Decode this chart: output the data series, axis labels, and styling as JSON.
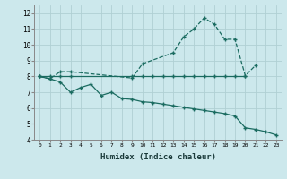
{
  "xlabel": "Humidex (Indice chaleur)",
  "bg_color": "#cce8ec",
  "grid_color": "#b0d0d4",
  "line_color": "#1a6b60",
  "ylim": [
    4,
    12.5
  ],
  "xlim": [
    -0.5,
    23.5
  ],
  "yticks": [
    4,
    5,
    6,
    7,
    8,
    9,
    10,
    11,
    12
  ],
  "xticks": [
    0,
    1,
    2,
    3,
    4,
    5,
    6,
    7,
    8,
    9,
    10,
    11,
    12,
    13,
    14,
    15,
    16,
    17,
    18,
    19,
    20,
    21,
    22,
    23
  ],
  "line1_x": [
    0,
    1,
    2,
    3,
    9,
    10,
    13,
    14,
    15,
    16,
    17,
    18,
    19,
    20,
    21
  ],
  "line1_y": [
    8.0,
    7.85,
    8.3,
    8.3,
    7.9,
    8.8,
    9.5,
    10.5,
    11.0,
    11.7,
    11.3,
    10.35,
    10.35,
    8.05,
    8.7
  ],
  "line2_x": [
    0,
    1,
    2,
    3,
    9,
    10,
    11,
    12,
    13,
    14,
    15,
    16,
    17,
    18,
    19,
    20
  ],
  "line2_y": [
    8.0,
    8.0,
    8.0,
    8.0,
    8.0,
    8.0,
    8.0,
    8.0,
    8.0,
    8.0,
    8.0,
    8.0,
    8.0,
    8.0,
    8.0,
    8.0
  ],
  "line3_x": [
    0,
    1,
    2,
    3,
    4,
    5,
    6,
    7,
    8,
    9,
    10,
    11,
    12,
    13,
    14,
    15,
    16,
    17,
    18,
    19,
    20,
    21,
    22,
    23
  ],
  "line3_y": [
    8.0,
    7.85,
    7.65,
    7.0,
    7.3,
    7.5,
    6.8,
    7.0,
    6.6,
    6.55,
    6.4,
    6.35,
    6.25,
    6.15,
    6.05,
    5.95,
    5.85,
    5.75,
    5.65,
    5.5,
    4.75,
    4.65,
    4.5,
    4.3
  ],
  "marker": "+",
  "markersize": 3.5,
  "linewidth": 0.9
}
